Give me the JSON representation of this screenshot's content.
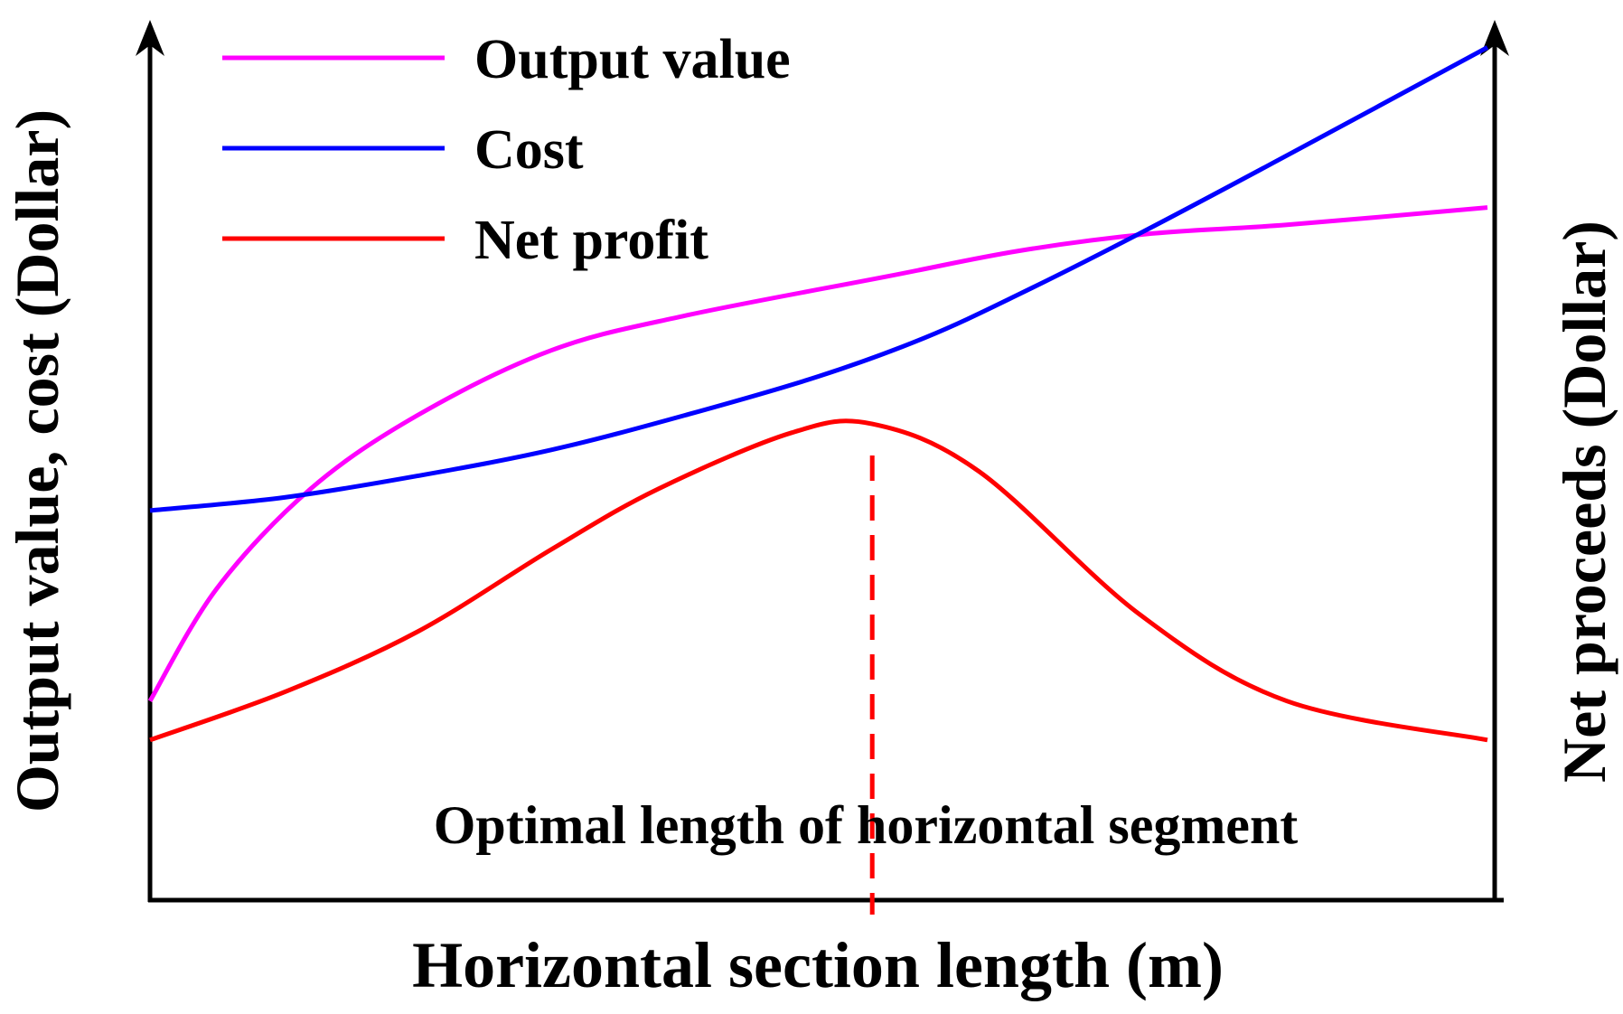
{
  "chart_data": {
    "type": "line",
    "title": "",
    "xlabel": "Horizontal section length (m)",
    "ylabel_left": "Output value, cost  (Dollar)",
    "ylabel_right": "Net proceeds (Dollar)",
    "xlim": [
      0,
      100
    ],
    "ylim": [
      0,
      100
    ],
    "grid": false,
    "legend_position": "top-left",
    "series": [
      {
        "name": "Output value",
        "color": "#ff00ff",
        "x": [
          0,
          5,
          12,
          20,
          30,
          40,
          55,
          65,
          75,
          85,
          100
        ],
        "y": [
          23,
          36,
          47.5,
          56,
          63.5,
          67.5,
          72,
          75,
          77,
          78,
          80
        ]
      },
      {
        "name": "Cost",
        "color": "#0000ff",
        "x": [
          0,
          10,
          20,
          30,
          40,
          50,
          58,
          65,
          74,
          85,
          100
        ],
        "y": [
          45,
          46.5,
          49,
          52,
          56,
          60.5,
          65,
          70,
          77,
          86,
          98.5
        ]
      },
      {
        "name": "Net profit",
        "color": "#ff0000",
        "x": [
          0,
          10,
          20,
          30,
          38,
          48,
          54,
          62,
          74,
          85,
          100
        ],
        "y": [
          18.5,
          24,
          31,
          40.5,
          47.5,
          54,
          55,
          49.5,
          33,
          23,
          18.5
        ]
      }
    ],
    "annotations": [
      {
        "text": "Optimal length of horizontal segment",
        "x": 54,
        "color": "#ff0000",
        "style": "dashed-vertical-line"
      }
    ]
  }
}
